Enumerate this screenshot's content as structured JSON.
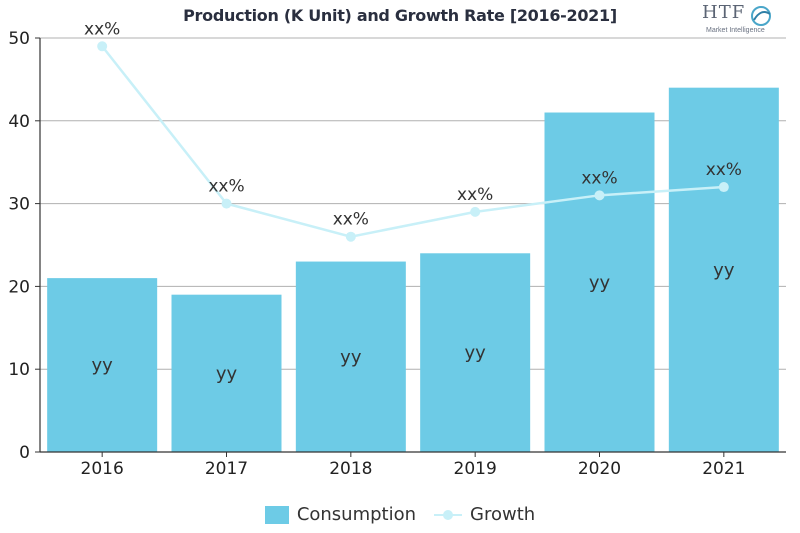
{
  "header": {
    "title": "Production (K Unit) and Growth Rate [2016-2021]",
    "logo_text": "HTF",
    "logo_subtext": "Market Intelligence"
  },
  "chart_data": {
    "type": "bar",
    "categories": [
      "2016",
      "2017",
      "2018",
      "2019",
      "2020",
      "2021"
    ],
    "ylim": [
      0,
      50
    ],
    "yticks": [
      "0",
      "10",
      "20",
      "30",
      "40",
      "50"
    ],
    "grid": true,
    "legend_position": "bottom-center",
    "series": [
      {
        "name": "Consumption",
        "kind": "bar",
        "color": "#6dcbe6",
        "values": [
          21,
          19,
          23,
          24,
          41,
          44
        ],
        "labels": [
          "yy",
          "yy",
          "yy",
          "yy",
          "yy",
          "yy"
        ]
      },
      {
        "name": "Growth",
        "kind": "line",
        "color": "#c8f0f8",
        "values": [
          49,
          30,
          26,
          29,
          31,
          32
        ],
        "labels": [
          "xx%",
          "xx%",
          "xx%",
          "xx%",
          "xx%",
          "xx%"
        ]
      }
    ]
  }
}
